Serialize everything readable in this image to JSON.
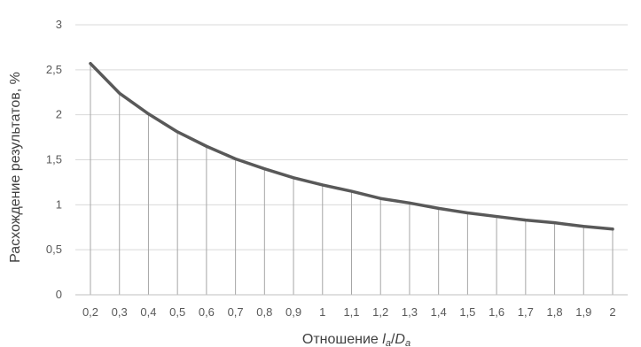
{
  "chart_data": {
    "type": "line",
    "title": "",
    "xlabel": "Отношение la/Da",
    "xlabel_parts": {
      "prefix": "Отношение ",
      "var1": "l",
      "sub1": "a",
      "slash": "/",
      "var2": "D",
      "sub2": "a"
    },
    "ylabel": "Расхождение результатов, %",
    "categories": [
      "0,2",
      "0,3",
      "0,4",
      "0,5",
      "0,6",
      "0,7",
      "0,8",
      "0,9",
      "1",
      "1,1",
      "1,2",
      "1,3",
      "1,4",
      "1,5",
      "1,6",
      "1,7",
      "1,8",
      "1,9",
      "2"
    ],
    "y_ticks": [
      "0",
      "0,5",
      "1",
      "1,5",
      "2",
      "2,5",
      "3"
    ],
    "ylim": [
      0,
      3
    ],
    "grid": true,
    "drop_lines": true,
    "series": [
      {
        "values": [
          2.57,
          2.24,
          2.01,
          1.81,
          1.65,
          1.51,
          1.4,
          1.3,
          1.22,
          1.15,
          1.07,
          1.02,
          0.96,
          0.91,
          0.87,
          0.83,
          0.8,
          0.76,
          0.73
        ],
        "color": "#595959"
      }
    ],
    "colors": {
      "grid": "#d9d9d9",
      "axis": "#bfbfbf",
      "drop_line": "#a6a6a6",
      "line": "#595959"
    }
  }
}
